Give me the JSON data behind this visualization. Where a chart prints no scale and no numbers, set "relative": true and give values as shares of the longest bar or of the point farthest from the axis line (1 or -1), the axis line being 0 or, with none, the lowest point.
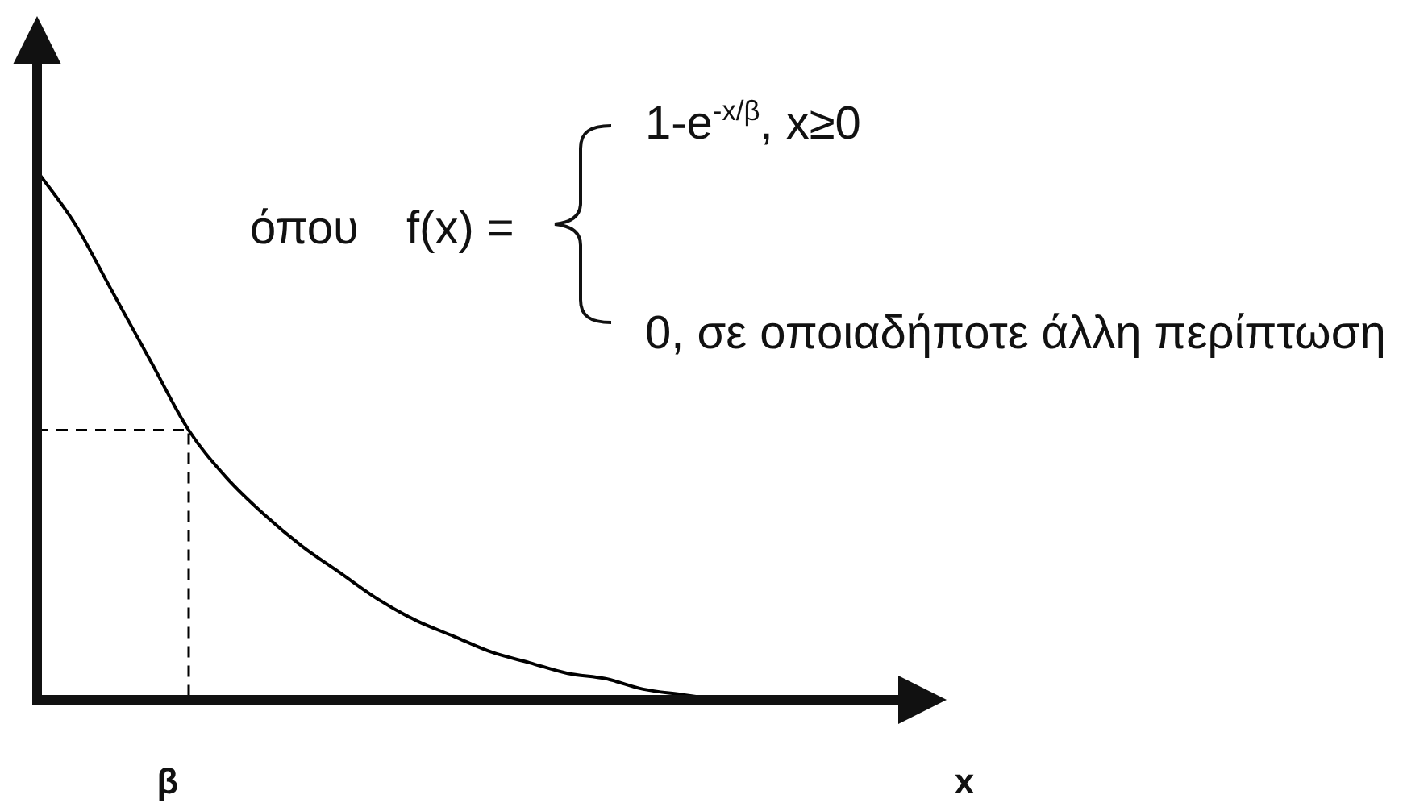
{
  "chart_data": {
    "type": "line",
    "relative": true,
    "categories": [
      null,
      null,
      null,
      null,
      null,
      null,
      null,
      null,
      null,
      null,
      null,
      null,
      null,
      null,
      null,
      null,
      null,
      null,
      null,
      null,
      null,
      null,
      null,
      null,
      null
    ],
    "series": [
      {
        "color": "#000000",
        "values": [
          1.0,
          0.9,
          0.77,
          0.64,
          0.51,
          0.42,
          0.35,
          0.29,
          0.24,
          0.19,
          0.15,
          0.12,
          0.09,
          0.07,
          0.05,
          0.04,
          0.02,
          0.01,
          0,
          null,
          null,
          null,
          null,
          null,
          null
        ]
      }
    ],
    "marker": "none",
    "ref_lines": [
      {
        "axis": "y",
        "value": 0.51,
        "color": "#000000",
        "line_style": "dashed"
      }
    ],
    "annotations": [
      "όπου",
      "f(x) =",
      "1-e$^{-x/β}$, x≥0",
      "0, σε οποιαδήποτε άλλη περίπτωση",
      "β",
      "x"
    ]
  }
}
